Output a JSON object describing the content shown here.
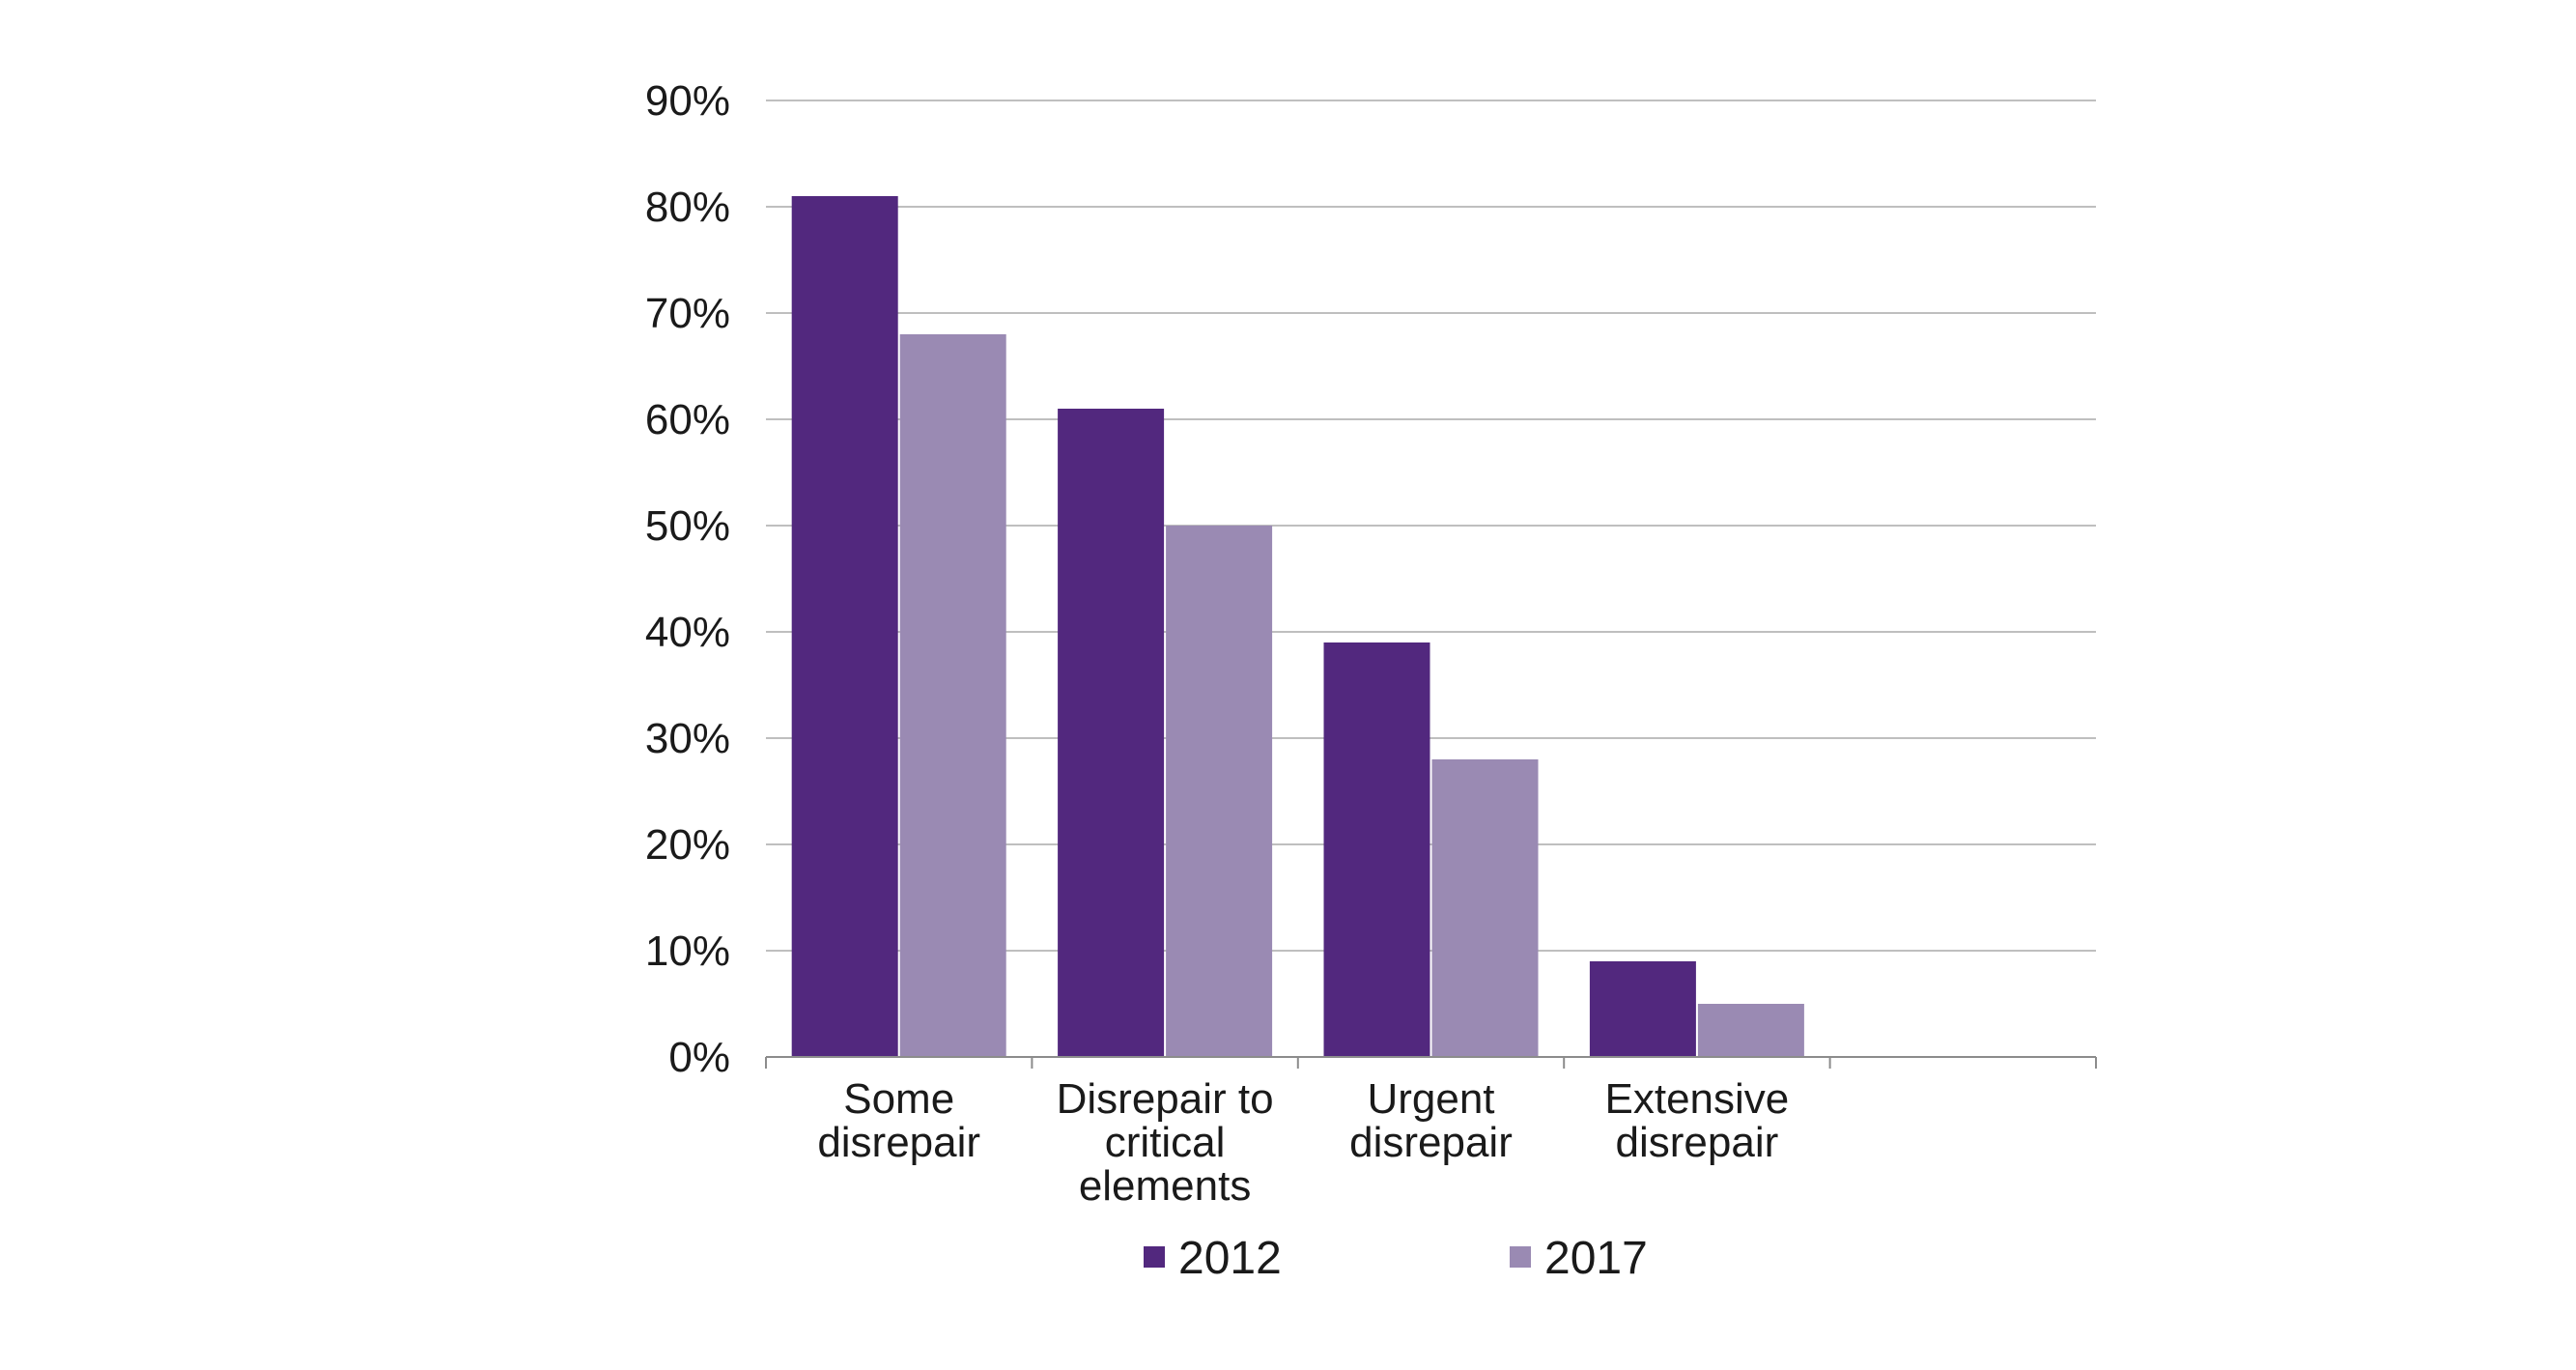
{
  "chart_data": {
    "type": "bar",
    "categories": [
      [
        "Some",
        "disrepair"
      ],
      [
        "Disrepair to",
        "critical",
        "elements"
      ],
      [
        "Urgent",
        "disrepair"
      ],
      [
        "Extensive",
        "disrepair"
      ],
      []
    ],
    "series": [
      {
        "name": "2012",
        "color": "#52287e",
        "values": [
          81,
          61,
          39,
          9,
          null
        ]
      },
      {
        "name": "2017",
        "color": "#9a8ab3",
        "values": [
          68,
          50,
          28,
          5,
          null
        ]
      }
    ],
    "y_ticks": [
      "0%",
      "10%",
      "20%",
      "30%",
      "40%",
      "50%",
      "60%",
      "70%",
      "80%",
      "90%"
    ],
    "ylim": [
      0,
      90
    ],
    "y_step": 10,
    "grid": true,
    "legend_position": "bottom",
    "colors": {
      "gridline": "#bfbfbf",
      "axis": "#8c8c8c"
    }
  }
}
